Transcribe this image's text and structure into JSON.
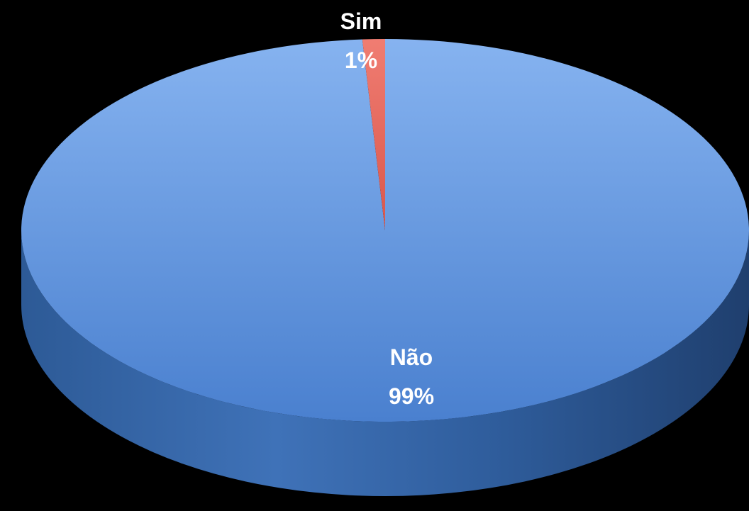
{
  "chart_data": {
    "type": "pie",
    "style": "3d",
    "categories": [
      "Sim",
      "Não"
    ],
    "values": [
      1,
      99
    ],
    "unit": "%",
    "data_labels": [
      {
        "category": "Sim",
        "percent": "1%"
      },
      {
        "category": "Não",
        "percent": "99%"
      }
    ],
    "legend": "none",
    "colors": {
      "Sim": "#e8665a",
      "Não": "#5b8fd6",
      "background": "#000000"
    }
  }
}
